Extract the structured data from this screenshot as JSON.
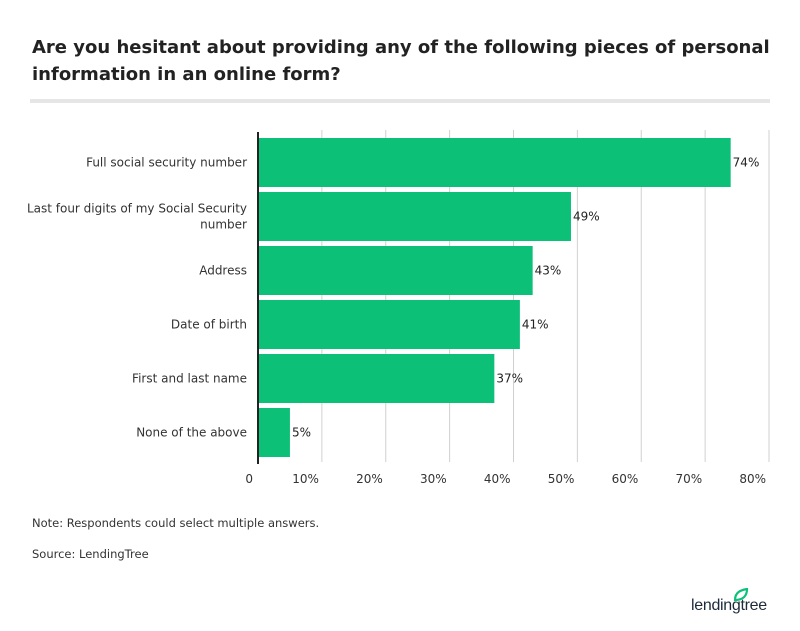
{
  "title": "Are you hesitant about providing any of the following pieces of personal information in an online form?",
  "note": "Note: Respondents could select multiple answers.",
  "source": "Source: LendingTree",
  "logo_text": "lendingtree",
  "colors": {
    "bar": "#0cc177",
    "grid": "#d0d0d0",
    "axis": "#222222",
    "logo_leaf": "#0cc177"
  },
  "chart_data": {
    "type": "bar",
    "orientation": "horizontal",
    "categories": [
      "Full social security number",
      "Last four digits of my Social Security number",
      "Address",
      "Date of birth",
      "First and last name",
      "None of the above"
    ],
    "category_lines": [
      [
        "Full social security number"
      ],
      [
        "Last four digits of my Social Security",
        "number"
      ],
      [
        "Address"
      ],
      [
        "Date of birth"
      ],
      [
        "First and last name"
      ],
      [
        "None of the above"
      ]
    ],
    "values": [
      74,
      49,
      43,
      41,
      37,
      5
    ],
    "data_labels": [
      "74%",
      "49%",
      "43%",
      "41%",
      "37%",
      "5%"
    ],
    "xlim": [
      0,
      80
    ],
    "ticks": [
      0,
      10,
      20,
      30,
      40,
      50,
      60,
      70,
      80
    ],
    "tick_labels": [
      "0",
      "10%",
      "20%",
      "30%",
      "40%",
      "50%",
      "60%",
      "70%",
      "80%"
    ],
    "grid": true,
    "xlabel": "",
    "ylabel": ""
  }
}
